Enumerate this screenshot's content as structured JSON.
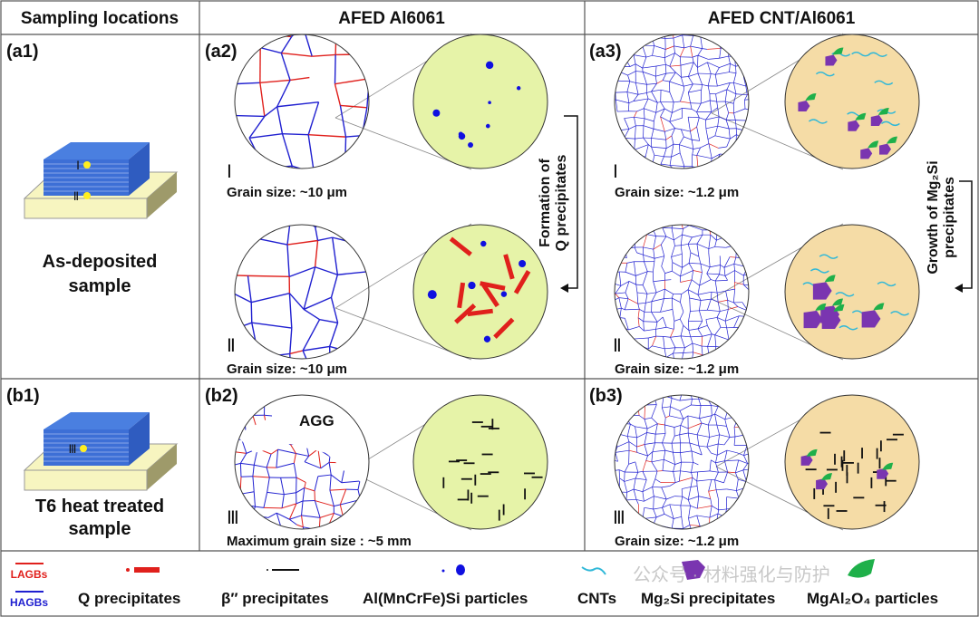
{
  "header": {
    "col1": "Sampling locations",
    "col2": "AFED Al6061",
    "col3": "AFED CNT/Al6061"
  },
  "panels": {
    "a1": {
      "label": "(a1)",
      "caption_line1": "As-deposited",
      "caption_line2": "sample",
      "marker1": "Ⅰ",
      "marker2": "Ⅱ"
    },
    "a2": {
      "label": "(a2)",
      "zone1": "Ⅰ",
      "zone1_size": "Grain size: ~10 μm",
      "zone2": "Ⅱ",
      "zone2_size": "Grain size: ~10 μm",
      "arrow_line1": "Formation of",
      "arrow_line2": "Q precipitates"
    },
    "a3": {
      "label": "(a3)",
      "zone1": "Ⅰ",
      "zone1_size": "Grain size: ~1.2 μm",
      "zone2": "Ⅱ",
      "zone2_size": "Grain size: ~1.2 μm",
      "arrow_line1": "Growth of Mg₂Si",
      "arrow_line2": "precipitates"
    },
    "b1": {
      "label": "(b1)",
      "caption_line1": "T6 heat treated",
      "caption_line2": "sample",
      "marker": "Ⅲ"
    },
    "b2": {
      "label": "(b2)",
      "zone": "Ⅲ",
      "agg": "AGG",
      "size": "Maximum grain size : ~5 mm"
    },
    "b3": {
      "label": "(b3)",
      "zone": "Ⅲ",
      "size": "Grain size: ~1.2 μm"
    }
  },
  "legend": {
    "lagbs": "LAGBs",
    "hagbs": "HAGBs",
    "q": "Q precipitates",
    "beta": "β″ precipitates",
    "al": "Al(MnCrFe)Si particles",
    "cnts": "CNTs",
    "mg2si": "Mg₂Si precipitates",
    "mgal2o4": "MgAl₂O₄ particles"
  },
  "watermark": "公众号 · 材料强化与防护",
  "colors": {
    "lagb": "#e0201c",
    "hagb": "#2020d0",
    "al_bg": "#e6f3a8",
    "cnt_bg": "#f5dca6",
    "purple": "#7a35b0",
    "green": "#1fb04a",
    "cnt": "#30b8d8",
    "block": "#4a7fe0",
    "substrate": "#f7f5c0"
  }
}
